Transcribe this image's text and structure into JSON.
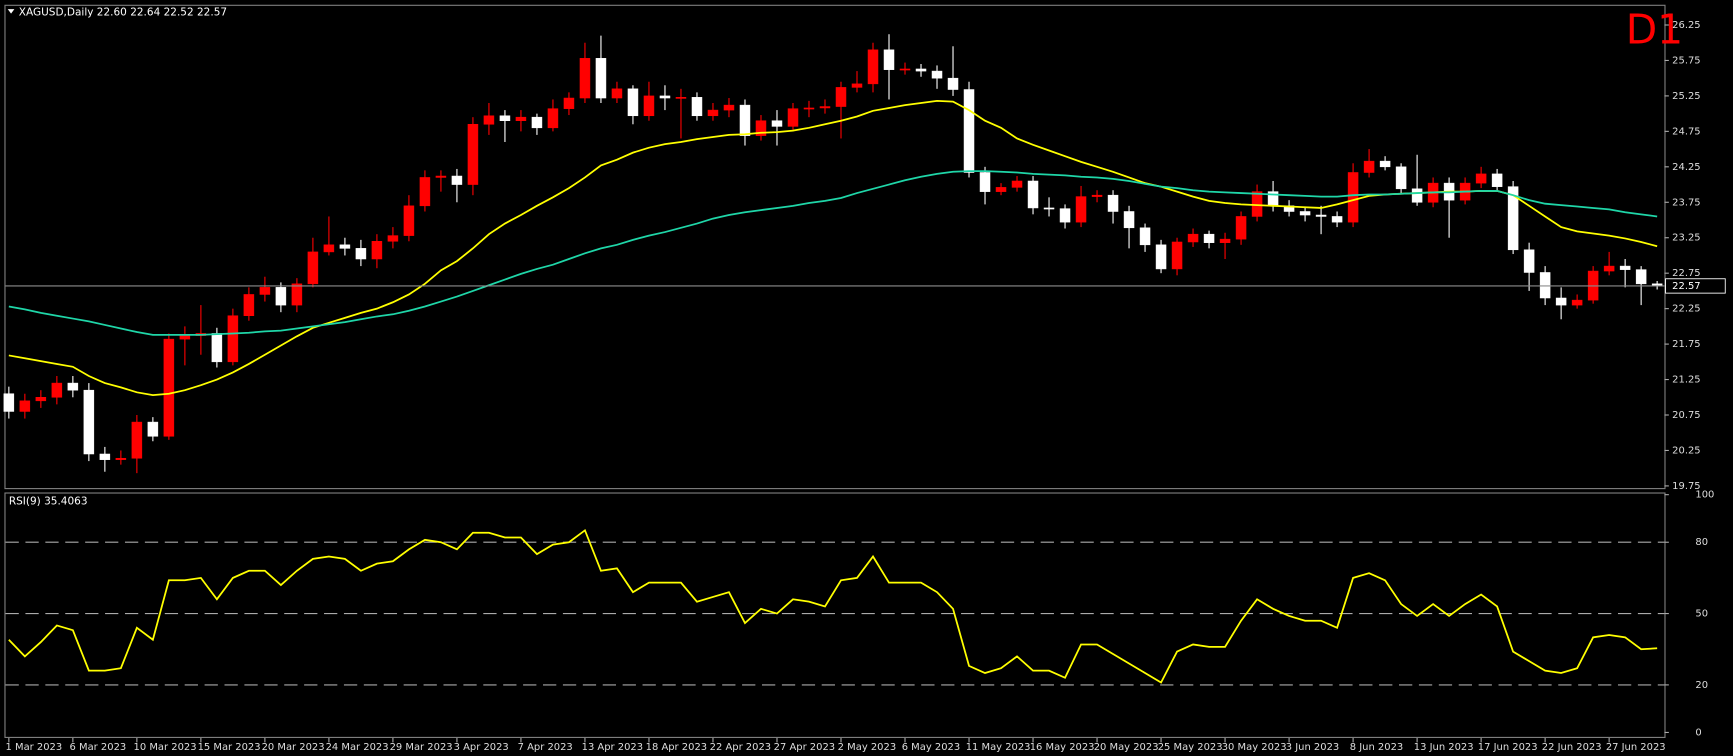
{
  "chart_data": [
    {
      "type": "candlestick",
      "title": "XAGUSD,Daily  22.60 22.64 22.52 22.57",
      "annotation": "D1",
      "categories": [
        "1 Mar 2023",
        null,
        null,
        null,
        "6 Mar 2023",
        null,
        null,
        null,
        "10 Mar 2023",
        null,
        null,
        null,
        "15 Mar 2023",
        null,
        null,
        null,
        "20 Mar 2023",
        null,
        null,
        null,
        "24 Mar 2023",
        null,
        null,
        null,
        "29 Mar 2023",
        null,
        null,
        null,
        "3 Apr 2023",
        null,
        null,
        null,
        "7 Apr 2023",
        null,
        null,
        null,
        "13 Apr 2023",
        null,
        null,
        null,
        "18 Apr 2023",
        null,
        null,
        null,
        "22 Apr 2023",
        null,
        null,
        null,
        "27 Apr 2023",
        null,
        null,
        null,
        "2 May 2023",
        null,
        null,
        null,
        "6 May 2023",
        null,
        null,
        null,
        "11 May 2023",
        null,
        null,
        null,
        "16 May 2023",
        null,
        null,
        null,
        "20 May 2023",
        null,
        null,
        null,
        "25 May 2023",
        null,
        null,
        null,
        "30 May 2023",
        null,
        null,
        null,
        "3 Jun 2023",
        null,
        null,
        null,
        "8 Jun 2023",
        null,
        null,
        null,
        "13 Jun 2023",
        null,
        null,
        null,
        "17 Jun 2023",
        null,
        null,
        null,
        "22 Jun 2023",
        null,
        null,
        null,
        "27 Jun 2023",
        null,
        null,
        null
      ],
      "open": [
        21.05,
        20.8,
        20.95,
        21.0,
        21.2,
        21.1,
        20.2,
        20.12,
        20.14,
        20.65,
        20.45,
        21.82,
        21.87,
        21.9,
        21.5,
        22.15,
        22.45,
        22.55,
        22.3,
        22.6,
        23.05,
        23.15,
        23.1,
        22.95,
        23.2,
        23.28,
        23.7,
        24.1,
        24.12,
        24.0,
        24.85,
        24.97,
        24.9,
        24.95,
        24.8,
        25.07,
        25.22,
        25.78,
        25.22,
        25.35,
        24.97,
        25.25,
        25.22,
        25.23,
        24.97,
        25.05,
        25.12,
        24.69,
        24.9,
        24.82,
        25.07,
        25.08,
        25.1,
        25.37,
        25.42,
        25.9,
        25.62,
        25.63,
        25.6,
        25.5,
        25.34,
        24.17,
        23.9,
        23.96,
        24.05,
        23.67,
        23.66,
        23.47,
        23.83,
        23.85,
        23.62,
        23.39,
        23.15,
        22.81,
        23.19,
        23.3,
        23.18,
        23.23,
        23.55,
        23.9,
        23.7,
        23.62,
        23.57,
        23.55,
        23.47,
        24.17,
        24.33,
        24.25,
        23.94,
        23.75,
        24.02,
        23.78,
        24.02,
        24.15,
        23.97,
        23.08,
        22.76,
        22.4,
        22.3,
        22.37,
        22.78,
        22.85,
        22.8,
        22.6
      ],
      "high": [
        21.15,
        21.05,
        21.1,
        21.3,
        21.3,
        21.2,
        20.3,
        20.25,
        20.75,
        20.72,
        21.9,
        22.0,
        22.3,
        21.98,
        22.25,
        22.55,
        22.7,
        22.62,
        22.68,
        23.25,
        23.55,
        23.25,
        23.22,
        23.3,
        23.4,
        23.85,
        24.2,
        24.2,
        24.22,
        24.95,
        25.15,
        25.05,
        25.05,
        25.0,
        25.2,
        25.3,
        26.0,
        26.1,
        25.45,
        25.4,
        25.45,
        25.4,
        25.35,
        25.3,
        25.15,
        25.22,
        25.2,
        24.98,
        25.05,
        25.15,
        25.18,
        25.2,
        25.45,
        25.6,
        26.0,
        26.12,
        25.72,
        25.7,
        25.68,
        25.95,
        25.45,
        24.25,
        24.02,
        24.12,
        24.12,
        23.82,
        23.72,
        23.98,
        23.92,
        23.92,
        23.7,
        23.45,
        23.22,
        23.25,
        23.38,
        23.35,
        23.32,
        23.62,
        24.0,
        24.05,
        23.78,
        23.68,
        23.7,
        23.62,
        24.3,
        24.5,
        24.4,
        24.3,
        24.42,
        24.1,
        24.1,
        24.1,
        24.25,
        24.22,
        24.05,
        23.18,
        22.85,
        22.55,
        22.45,
        22.85,
        23.05,
        22.95,
        22.85,
        22.64
      ],
      "low": [
        20.7,
        20.7,
        20.85,
        20.9,
        21.0,
        20.1,
        19.95,
        20.05,
        19.93,
        20.38,
        20.4,
        21.45,
        21.6,
        21.42,
        21.45,
        22.08,
        22.35,
        22.2,
        22.2,
        22.55,
        23.0,
        23.0,
        22.85,
        22.82,
        23.1,
        23.2,
        23.62,
        23.9,
        23.75,
        23.85,
        24.7,
        24.6,
        24.75,
        24.7,
        24.75,
        24.98,
        25.15,
        25.15,
        25.15,
        24.85,
        24.9,
        25.05,
        24.65,
        24.9,
        24.9,
        24.95,
        24.55,
        24.62,
        24.55,
        24.75,
        24.95,
        25.0,
        24.65,
        25.3,
        25.3,
        25.2,
        25.55,
        25.52,
        25.35,
        25.25,
        24.1,
        23.72,
        23.85,
        23.9,
        23.58,
        23.55,
        23.38,
        23.4,
        23.75,
        23.45,
        23.1,
        23.05,
        22.75,
        22.72,
        23.12,
        23.1,
        22.95,
        23.15,
        23.48,
        23.62,
        23.55,
        23.48,
        23.3,
        23.4,
        23.4,
        24.1,
        24.2,
        23.88,
        23.7,
        23.68,
        23.25,
        23.72,
        23.95,
        23.9,
        23.02,
        22.5,
        22.3,
        22.1,
        22.25,
        22.32,
        22.72,
        22.55,
        22.3,
        22.52
      ],
      "close": [
        20.8,
        20.95,
        21.0,
        21.2,
        21.1,
        20.2,
        20.12,
        20.14,
        20.65,
        20.45,
        21.82,
        21.87,
        21.9,
        21.5,
        22.15,
        22.45,
        22.55,
        22.3,
        22.6,
        23.05,
        23.15,
        23.1,
        22.95,
        23.2,
        23.28,
        23.7,
        24.1,
        24.12,
        24.0,
        24.85,
        24.97,
        24.9,
        24.95,
        24.8,
        25.07,
        25.22,
        25.78,
        25.22,
        25.35,
        24.97,
        25.25,
        25.22,
        25.23,
        24.97,
        25.05,
        25.12,
        24.69,
        24.9,
        24.82,
        25.07,
        25.08,
        25.1,
        25.37,
        25.42,
        25.9,
        25.62,
        25.63,
        25.6,
        25.5,
        25.34,
        24.17,
        23.9,
        23.96,
        24.05,
        23.67,
        23.66,
        23.47,
        23.83,
        23.85,
        23.62,
        23.39,
        23.15,
        22.81,
        23.19,
        23.3,
        23.18,
        23.23,
        23.55,
        23.9,
        23.7,
        23.62,
        23.57,
        23.55,
        23.47,
        24.17,
        24.33,
        24.25,
        23.94,
        23.75,
        24.02,
        23.78,
        24.02,
        24.15,
        23.97,
        23.08,
        22.76,
        22.4,
        22.3,
        22.37,
        22.78,
        22.85,
        22.8,
        22.6,
        22.57
      ],
      "up_color": "#ff0000",
      "down_color": "#ffffff",
      "series": [
        {
          "color": "#ffff00",
          "values": [
            21.59,
            21.55,
            21.51,
            21.47,
            21.43,
            21.3,
            21.2,
            21.14,
            21.07,
            21.03,
            21.05,
            21.1,
            21.17,
            21.25,
            21.35,
            21.47,
            21.6,
            21.73,
            21.86,
            21.98,
            22.05,
            22.12,
            22.19,
            22.25,
            22.34,
            22.45,
            22.6,
            22.79,
            22.92,
            23.1,
            23.3,
            23.45,
            23.57,
            23.7,
            23.82,
            23.95,
            24.1,
            24.27,
            24.35,
            24.45,
            24.52,
            24.57,
            24.6,
            24.64,
            24.67,
            24.7,
            24.71,
            24.73,
            24.74,
            24.76,
            24.8,
            24.85,
            24.9,
            24.96,
            25.04,
            25.08,
            25.12,
            25.15,
            25.18,
            25.17,
            25.05,
            24.9,
            24.8,
            24.65,
            24.56,
            24.48,
            24.4,
            24.32,
            24.25,
            24.18,
            24.1,
            24.02,
            23.97,
            23.9,
            23.83,
            23.77,
            23.74,
            23.72,
            23.71,
            23.7,
            23.69,
            23.68,
            23.67,
            23.72,
            23.78,
            23.84,
            23.86,
            23.87,
            23.88,
            23.89,
            23.9,
            23.9,
            23.91,
            23.91,
            23.85,
            23.7,
            23.55,
            23.4,
            23.34,
            23.31,
            23.28,
            23.24,
            23.19,
            23.13
          ]
        },
        {
          "color": "#1fd6a8",
          "values": [
            22.28,
            22.24,
            22.19,
            22.15,
            22.11,
            22.07,
            22.02,
            21.97,
            21.92,
            21.88,
            21.88,
            21.88,
            21.88,
            21.89,
            21.9,
            21.91,
            21.93,
            21.94,
            21.97,
            22.0,
            22.03,
            22.06,
            22.1,
            22.14,
            22.17,
            22.22,
            22.28,
            22.35,
            22.42,
            22.5,
            22.58,
            22.66,
            22.74,
            22.81,
            22.87,
            22.95,
            23.03,
            23.1,
            23.15,
            23.22,
            23.28,
            23.33,
            23.39,
            23.45,
            23.52,
            23.57,
            23.61,
            23.64,
            23.67,
            23.7,
            23.74,
            23.77,
            23.81,
            23.88,
            23.94,
            24.0,
            24.06,
            24.11,
            24.15,
            24.18,
            24.19,
            24.19,
            24.18,
            24.17,
            24.15,
            24.14,
            24.13,
            24.11,
            24.1,
            24.08,
            24.05,
            24.01,
            23.97,
            23.95,
            23.92,
            23.9,
            23.89,
            23.88,
            23.87,
            23.86,
            23.85,
            23.84,
            23.83,
            23.83,
            23.85,
            23.86,
            23.86,
            23.87,
            23.88,
            23.89,
            23.89,
            23.9,
            23.91,
            23.91,
            23.85,
            23.78,
            23.73,
            23.71,
            23.69,
            23.67,
            23.65,
            23.61,
            23.58,
            23.55
          ]
        }
      ],
      "ylim": [
        19.72,
        26.52
      ],
      "yticks": [
        26.25,
        25.75,
        25.25,
        24.75,
        24.25,
        23.75,
        23.25,
        22.75,
        22.25,
        21.75,
        21.25,
        20.75,
        20.25,
        19.75
      ],
      "price_line_color": "#8c8c8c"
    },
    {
      "type": "line",
      "title": "RSI(9) 35.4063",
      "color": "#ffff00",
      "values": [
        39,
        32,
        38,
        45,
        43,
        26,
        26,
        27,
        44,
        39,
        64,
        64,
        65,
        56,
        65,
        68,
        68,
        62,
        68,
        73,
        74,
        73,
        68,
        71,
        72,
        77,
        81,
        80,
        77,
        84,
        84,
        82,
        82,
        75,
        79,
        80,
        85,
        68,
        69,
        59,
        63,
        63,
        63,
        55,
        57,
        59,
        46,
        52,
        50,
        56,
        55,
        53,
        64,
        65,
        74,
        63,
        63,
        63,
        59,
        52,
        28,
        25,
        27,
        32,
        26,
        26,
        23,
        37,
        37,
        33,
        29,
        25,
        21,
        34,
        37,
        36,
        36,
        47,
        56,
        52,
        49,
        47,
        47,
        44,
        65,
        67,
        64,
        54,
        49,
        54,
        49,
        54,
        58,
        53,
        34,
        30,
        26,
        25,
        27,
        40,
        41,
        40,
        35,
        35.4063
      ],
      "ylim": [
        0,
        100
      ],
      "yticks": [
        100,
        80,
        50,
        20,
        0
      ],
      "levels": [
        80,
        50,
        20
      ]
    }
  ]
}
